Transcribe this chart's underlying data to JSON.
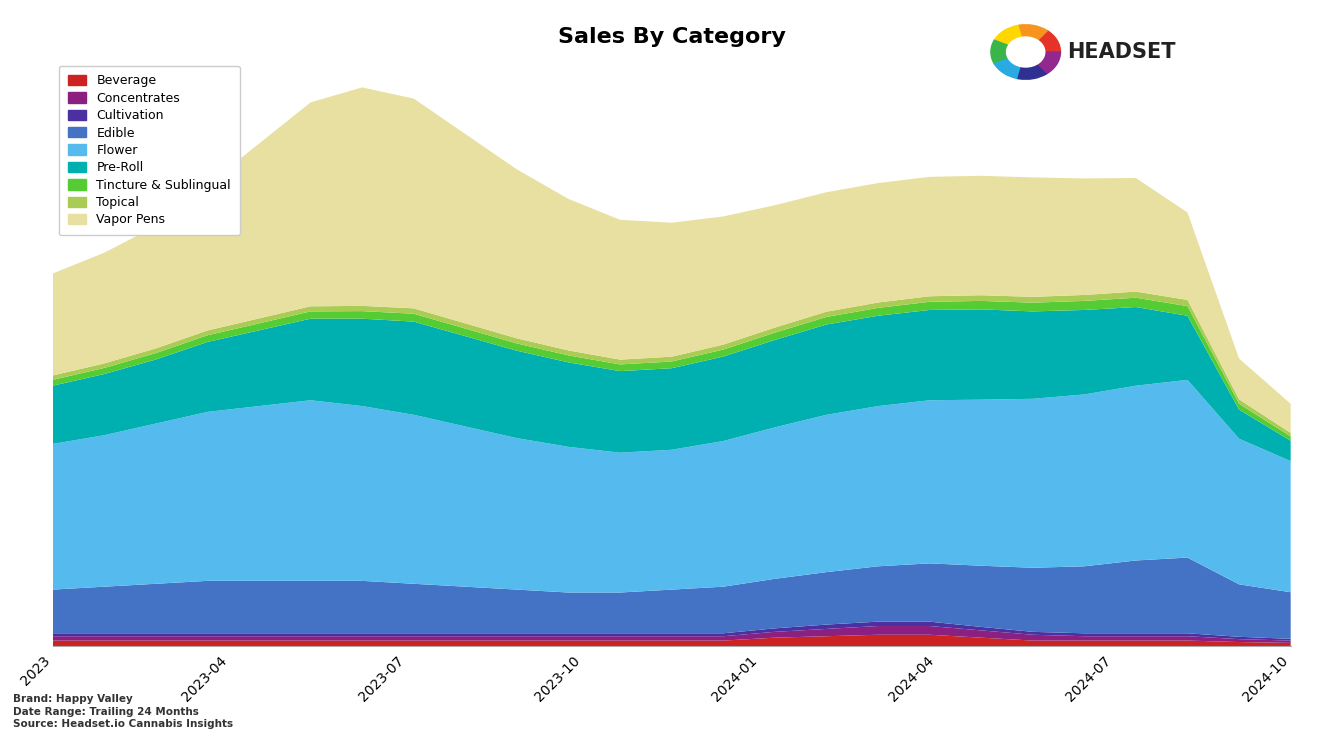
{
  "title": "Sales By Category",
  "categories": [
    "Beverage",
    "Concentrates",
    "Cultivation",
    "Edible",
    "Flower",
    "Pre-Roll",
    "Tincture & Sublingual",
    "Topical",
    "Vapor Pens"
  ],
  "colors": [
    "#cc2222",
    "#8b2080",
    "#4a30a0",
    "#4472c4",
    "#55bbee",
    "#00b0b0",
    "#55cc33",
    "#aacc55",
    "#e8e0a0"
  ],
  "background_color": "#ffffff",
  "title_fontsize": 16,
  "x_tick_labels": [
    "2023",
    "2023-04",
    "2023-07",
    "2023-10",
    "2024-01",
    "2024-04",
    "2024-07",
    "2024-10"
  ],
  "footer_brand": "Brand: Happy Valley",
  "footer_date": "Date Range: Trailing 24 Months",
  "footer_source": "Source: Headset.io Cannabis Insights",
  "x_values": [
    0,
    1,
    2,
    3,
    4,
    5,
    6,
    7,
    8,
    9,
    10,
    11,
    12,
    13,
    14,
    15,
    16,
    17,
    18,
    19,
    20,
    21,
    22,
    23,
    24
  ],
  "beverage": [
    200,
    200,
    200,
    200,
    200,
    200,
    200,
    200,
    200,
    200,
    200,
    200,
    200,
    200,
    300,
    350,
    400,
    400,
    300,
    200,
    200,
    200,
    200,
    150,
    120
  ],
  "concentrates": [
    150,
    150,
    150,
    150,
    150,
    150,
    150,
    150,
    150,
    150,
    150,
    150,
    150,
    150,
    200,
    250,
    300,
    300,
    250,
    200,
    150,
    150,
    150,
    100,
    80
  ],
  "cultivation": [
    100,
    100,
    100,
    100,
    100,
    100,
    100,
    100,
    100,
    100,
    100,
    100,
    100,
    100,
    120,
    150,
    150,
    150,
    120,
    100,
    100,
    100,
    100,
    80,
    60
  ],
  "edible": [
    1500,
    1600,
    1700,
    1800,
    1800,
    1800,
    1800,
    1700,
    1600,
    1500,
    1400,
    1400,
    1500,
    1600,
    1700,
    1800,
    1900,
    2000,
    2100,
    2200,
    2300,
    2500,
    2600,
    1800,
    1600
  ],
  "flower": [
    5000,
    5200,
    5500,
    5800,
    6000,
    6200,
    6000,
    5800,
    5500,
    5200,
    5000,
    4800,
    4800,
    5000,
    5200,
    5400,
    5500,
    5600,
    5700,
    5800,
    5900,
    6000,
    6100,
    5000,
    4500
  ],
  "preroll": [
    2000,
    2100,
    2200,
    2400,
    2600,
    2800,
    3000,
    3200,
    3100,
    3000,
    2900,
    2800,
    2800,
    2900,
    3000,
    3100,
    3100,
    3100,
    3100,
    3000,
    2900,
    2700,
    2200,
    1000,
    700
  ],
  "tincture": [
    200,
    210,
    220,
    230,
    240,
    250,
    260,
    270,
    260,
    250,
    240,
    230,
    230,
    240,
    250,
    260,
    270,
    280,
    290,
    300,
    310,
    320,
    330,
    200,
    150
  ],
  "topical": [
    150,
    155,
    160,
    165,
    170,
    175,
    180,
    185,
    180,
    175,
    170,
    165,
    165,
    170,
    175,
    180,
    185,
    190,
    195,
    200,
    205,
    210,
    215,
    150,
    120
  ],
  "vaporpens": [
    3500,
    3800,
    4200,
    5000,
    6000,
    7000,
    7500,
    7200,
    6500,
    5800,
    5200,
    4800,
    4600,
    4400,
    4200,
    4100,
    4100,
    4100,
    4100,
    4100,
    4000,
    3900,
    3000,
    1400,
    1000
  ]
}
